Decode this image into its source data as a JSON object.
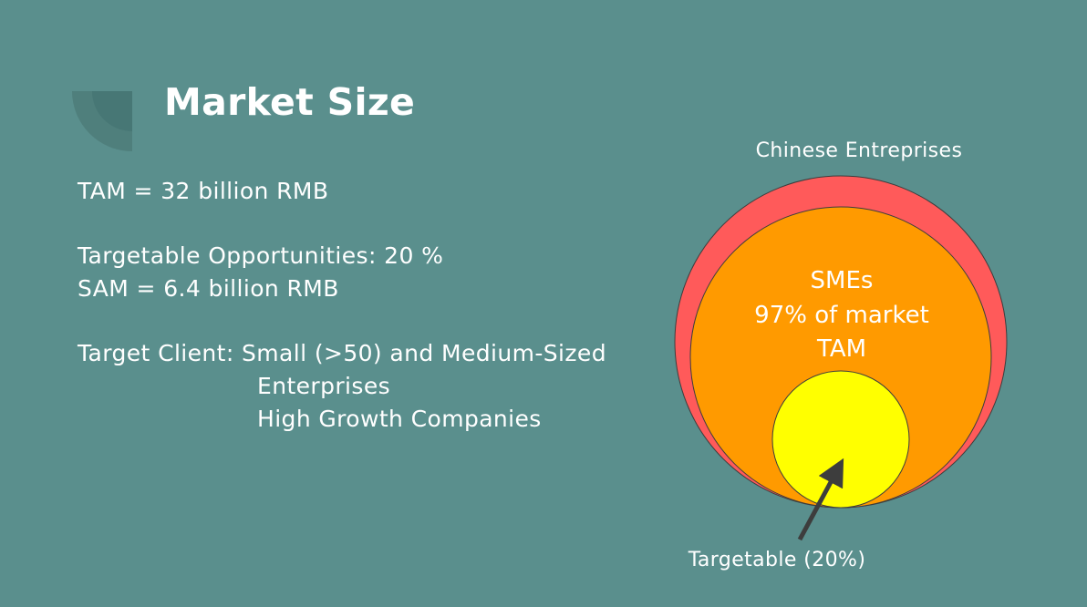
{
  "slide": {
    "title": "Market Size",
    "tam_line": "TAM = 32 billion RMB",
    "targetable_line": "Targetable Opportunities: 20 %",
    "sam_line": "SAM = 6.4 billion RMB",
    "target_client_line": "Target Client: Small (>50) and Medium-Sized",
    "target_client_cont": "Enterprises",
    "target_client_extra": "High Growth Companies"
  },
  "diagram": {
    "outer_label": "Chinese Entreprises",
    "middle_label_1": "SMEs",
    "middle_label_2": "97% of market",
    "middle_label_3": "TAM",
    "pointer_label": "Targetable (20%)",
    "colors": {
      "outer": "#ff5a5a",
      "middle": "#ff9a00",
      "inner": "#ffff00",
      "arrow": "#3d3d3d"
    }
  }
}
